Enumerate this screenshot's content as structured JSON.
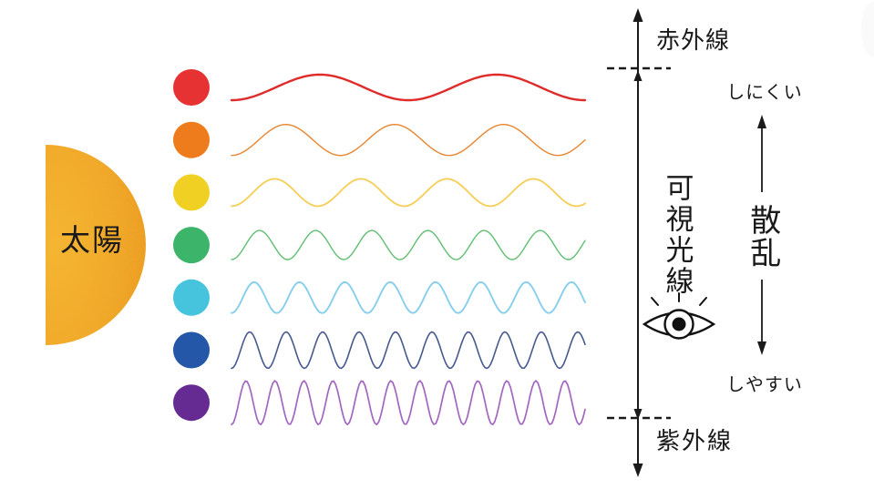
{
  "sun": {
    "label": "太陽",
    "body_color": "#f1a725",
    "center_color": "#f5b62f",
    "rim_color": "#eb9a1d",
    "speckle_color": "#d97711"
  },
  "axis_labels": {
    "infrared": "赤外線",
    "visible_light": "可視光線",
    "ultraviolet": "紫外線"
  },
  "scatter": {
    "title": "散乱",
    "hard_label": "しにくい",
    "easy_label": "しやすい"
  },
  "spectrum_rows": [
    {
      "name": "red",
      "dot_color": "#e63232",
      "wave_color": "#e02b2b",
      "wave_cycles": 2.0,
      "wave_amplitude": 14,
      "stroke_width": 2.4
    },
    {
      "name": "orange",
      "dot_color": "#ee7c1c",
      "wave_color": "#e8852e",
      "wave_cycles": 3.25,
      "wave_amplitude": 17,
      "stroke_width": 1.4
    },
    {
      "name": "yellow",
      "dot_color": "#f0d023",
      "wave_color": "#f6cd55",
      "wave_cycles": 4.1,
      "wave_amplitude": 15,
      "stroke_width": 1.8
    },
    {
      "name": "green",
      "dot_color": "#3cb469",
      "wave_color": "#5fbe71",
      "wave_cycles": 6.3,
      "wave_amplitude": 16,
      "stroke_width": 1.4
    },
    {
      "name": "cyan",
      "dot_color": "#46c3dd",
      "wave_color": "#85ceee",
      "wave_cycles": 7.8,
      "wave_amplitude": 17,
      "stroke_width": 1.9
    },
    {
      "name": "blue",
      "dot_color": "#2457a8",
      "wave_color": "#47598e",
      "wave_cycles": 9.7,
      "wave_amplitude": 20,
      "stroke_width": 1.6
    },
    {
      "name": "purple",
      "dot_color": "#662b92",
      "wave_color": "#a266c0",
      "wave_cycles": 12.2,
      "wave_amplitude": 24,
      "stroke_width": 1.7
    }
  ],
  "colors": {
    "ink": "#1a1a1a",
    "background": "#ffffff",
    "corner_artifact": "#fafafa"
  }
}
